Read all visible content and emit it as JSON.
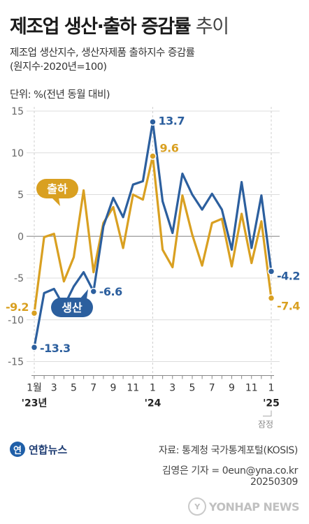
{
  "header": {
    "title_bold": "제조업 생산·출하 증감률",
    "title_light": "추이",
    "subtitle_line1": "제조업 생산지수, 생산자제품 출하지수 증감률",
    "subtitle_line2": "(원지수·2020년=100)",
    "unit": "단위: %(전년 동월 대비)"
  },
  "chart_data": {
    "type": "line",
    "x": [
      "2023-01",
      "2023-02",
      "2023-03",
      "2023-04",
      "2023-05",
      "2023-06",
      "2023-07",
      "2023-08",
      "2023-09",
      "2023-10",
      "2023-11",
      "2023-12",
      "2024-01",
      "2024-02",
      "2024-03",
      "2024-04",
      "2024-05",
      "2024-06",
      "2024-07",
      "2024-08",
      "2024-09",
      "2024-10",
      "2024-11",
      "2024-12",
      "2025-01"
    ],
    "x_tick_labels": [
      "1월",
      "",
      "3",
      "",
      "5",
      "",
      "7",
      "",
      "9",
      "",
      "11",
      "",
      "1",
      "",
      "3",
      "",
      "5",
      "",
      "7",
      "",
      "9",
      "",
      "11",
      "",
      "1"
    ],
    "year_labels": [
      {
        "index": 0,
        "label": "'23년"
      },
      {
        "index": 12,
        "label": "'24"
      },
      {
        "index": 24,
        "label": "'25"
      }
    ],
    "provisional_note": {
      "index": 24,
      "label": "잠정"
    },
    "ylim": [
      -16,
      15.5
    ],
    "yticks": [
      15,
      10,
      5,
      0,
      -5,
      -10,
      -15
    ],
    "ytick_labels": [
      "15",
      "10",
      "5",
      "0",
      "-5",
      "-10",
      "-15"
    ],
    "series": [
      {
        "name": "생산",
        "color": "#2c5f9e",
        "values": [
          -13.3,
          -6.8,
          -6.3,
          -8.4,
          -6.0,
          -4.3,
          -6.6,
          1.2,
          4.6,
          2.3,
          6.2,
          6.6,
          13.7,
          4.2,
          0.4,
          7.5,
          5.0,
          3.2,
          5.1,
          3.2,
          -1.6,
          6.5,
          -1.4,
          4.9,
          -4.2
        ]
      },
      {
        "name": "출하",
        "color": "#d9a021",
        "values": [
          -9.2,
          -0.1,
          0.3,
          -5.4,
          -2.5,
          5.5,
          -4.3,
          1.6,
          3.5,
          -1.4,
          5.0,
          4.4,
          9.6,
          -1.6,
          -3.7,
          4.9,
          0.2,
          -3.5,
          1.6,
          2.1,
          -3.6,
          2.7,
          -3.2,
          1.8,
          -7.4
        ]
      }
    ],
    "point_labels": [
      {
        "series": 0,
        "index": 0,
        "label": "-13.3"
      },
      {
        "series": 0,
        "index": 6,
        "label": "-6.6"
      },
      {
        "series": 0,
        "index": 12,
        "label": "13.7"
      },
      {
        "series": 0,
        "index": 24,
        "label": "-4.2"
      },
      {
        "series": 1,
        "index": 0,
        "label": "-9.2"
      },
      {
        "series": 1,
        "index": 12,
        "label": "9.6"
      },
      {
        "series": 1,
        "index": 24,
        "label": "-7.4"
      }
    ],
    "callouts": [
      {
        "series": 1,
        "label": "출하"
      },
      {
        "series": 0,
        "label": "생산"
      }
    ],
    "grid": true,
    "legend": "callouts"
  },
  "footer": {
    "logo_mark": "연",
    "logo_text": "연합뉴스",
    "source": "자료: 통계청 국가통계포털(KOSIS)",
    "reporter": "김영은 기자 = 0eun@yna.co.kr",
    "date": "20250309",
    "watermark": "YONHAP NEWS"
  }
}
